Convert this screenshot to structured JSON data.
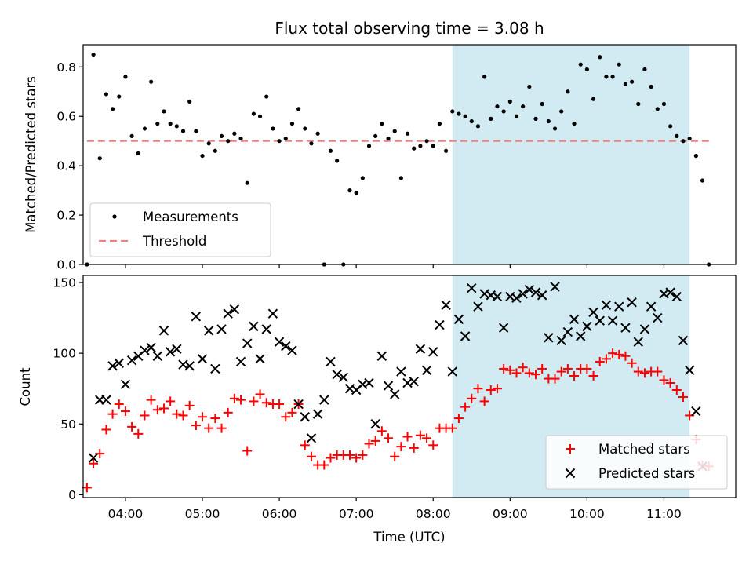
{
  "title": "Flux total observing time = 3.08 h",
  "top": {
    "ylabel": "Matched/Predicted stars",
    "ylim": [
      0,
      0.89
    ],
    "yticks": [
      0.0,
      0.2,
      0.4,
      0.6,
      0.8
    ],
    "ytick_labels": [
      "0.0",
      "0.2",
      "0.4",
      "0.6",
      "0.8"
    ],
    "threshold": 0.5,
    "legend": {
      "measurements": "Measurements",
      "threshold": "Threshold"
    }
  },
  "bottom": {
    "ylabel": "Count",
    "ylim": [
      -2,
      155
    ],
    "yticks": [
      0,
      50,
      100,
      150
    ],
    "ytick_labels": [
      "0",
      "50",
      "100",
      "150"
    ],
    "legend": {
      "matched": "Matched stars",
      "predicted": "Predicted stars"
    }
  },
  "xlabel": "Time (UTC)",
  "xlim": [
    "03:27",
    "11:56"
  ],
  "xticks": [
    "04:00",
    "05:00",
    "06:00",
    "07:00",
    "08:00",
    "09:00",
    "10:00",
    "11:00"
  ],
  "shaded_interval": [
    "08:15",
    "11:20"
  ],
  "colors": {
    "measurements": "#000000",
    "threshold": "#f08080",
    "matched": "#ff0000",
    "predicted": "#000000",
    "shade": "#add8e6"
  },
  "chart_data": {
    "type": "scatter",
    "x_unit": "time of day (UTC)",
    "ratio_series": {
      "name": "Measurements",
      "x": [
        "03:30",
        "03:35",
        "03:40",
        "03:45",
        "03:50",
        "03:55",
        "04:00",
        "04:05",
        "04:10",
        "04:15",
        "04:20",
        "04:25",
        "04:30",
        "04:35",
        "04:40",
        "04:45",
        "04:50",
        "04:55",
        "05:00",
        "05:05",
        "05:10",
        "05:15",
        "05:20",
        "05:25",
        "05:30",
        "05:35",
        "05:40",
        "05:45",
        "05:50",
        "05:55",
        "06:00",
        "06:05",
        "06:10",
        "06:15",
        "06:20",
        "06:25",
        "06:30",
        "06:35",
        "06:40",
        "06:45",
        "06:50",
        "06:55",
        "07:00",
        "07:05",
        "07:10",
        "07:15",
        "07:20",
        "07:25",
        "07:30",
        "07:35",
        "07:40",
        "07:45",
        "07:50",
        "07:55",
        "08:00",
        "08:05",
        "08:10",
        "08:15",
        "08:20",
        "08:25",
        "08:30",
        "08:35",
        "08:40",
        "08:45",
        "08:50",
        "08:55",
        "09:00",
        "09:05",
        "09:10",
        "09:15",
        "09:20",
        "09:25",
        "09:30",
        "09:35",
        "09:40",
        "09:45",
        "09:50",
        "09:55",
        "10:00",
        "10:05",
        "10:10",
        "10:15",
        "10:20",
        "10:25",
        "10:30",
        "10:35",
        "10:40",
        "10:45",
        "10:50",
        "10:55",
        "11:00",
        "11:05",
        "11:10",
        "11:15",
        "11:20",
        "11:25",
        "11:30",
        "11:35"
      ],
      "y": [
        0.0,
        0.85,
        0.43,
        0.69,
        0.63,
        0.68,
        0.76,
        0.52,
        0.45,
        0.55,
        0.74,
        0.57,
        0.62,
        0.57,
        0.56,
        0.54,
        0.66,
        0.54,
        0.44,
        0.49,
        0.46,
        0.52,
        0.5,
        0.53,
        0.51,
        0.33,
        0.61,
        0.6,
        0.68,
        0.55,
        0.5,
        0.51,
        0.57,
        0.63,
        0.55,
        0.49,
        0.53,
        0.0,
        0.46,
        0.42,
        0.0,
        0.3,
        0.29,
        0.35,
        0.48,
        0.52,
        0.57,
        0.51,
        0.54,
        0.35,
        0.53,
        0.47,
        0.48,
        0.5,
        0.48,
        0.57,
        0.46,
        0.62,
        0.61,
        0.6,
        0.58,
        0.56,
        0.76,
        0.59,
        0.64,
        0.62,
        0.66,
        0.6,
        0.64,
        0.72,
        0.59,
        0.65,
        0.58,
        0.55,
        0.62,
        0.7,
        0.57,
        0.81,
        0.79,
        0.67,
        0.84,
        0.76,
        0.76,
        0.81,
        0.73,
        0.74,
        0.65,
        0.79,
        0.72,
        0.63,
        0.65,
        0.56,
        0.52,
        0.5,
        0.51,
        0.44,
        0.34,
        0.0
      ]
    },
    "count_series": [
      {
        "name": "Matched stars",
        "x": [
          "03:30",
          "03:35",
          "03:40",
          "03:45",
          "03:50",
          "03:55",
          "04:00",
          "04:05",
          "04:10",
          "04:15",
          "04:20",
          "04:25",
          "04:30",
          "04:35",
          "04:40",
          "04:45",
          "04:50",
          "04:55",
          "05:00",
          "05:05",
          "05:10",
          "05:15",
          "05:20",
          "05:25",
          "05:30",
          "05:35",
          "05:40",
          "05:45",
          "05:50",
          "05:55",
          "06:00",
          "06:05",
          "06:10",
          "06:15",
          "06:20",
          "06:25",
          "06:30",
          "06:35",
          "06:40",
          "06:45",
          "06:50",
          "06:55",
          "07:00",
          "07:05",
          "07:10",
          "07:15",
          "07:20",
          "07:25",
          "07:30",
          "07:35",
          "07:40",
          "07:45",
          "07:50",
          "07:55",
          "08:00",
          "08:05",
          "08:10",
          "08:15",
          "08:20",
          "08:25",
          "08:30",
          "08:35",
          "08:40",
          "08:45",
          "08:50",
          "08:55",
          "09:00",
          "09:05",
          "09:10",
          "09:15",
          "09:20",
          "09:25",
          "09:30",
          "09:35",
          "09:40",
          "09:45",
          "09:50",
          "09:55",
          "10:00",
          "10:05",
          "10:10",
          "10:15",
          "10:20",
          "10:25",
          "10:30",
          "10:35",
          "10:40",
          "10:45",
          "10:50",
          "10:55",
          "11:00",
          "11:05",
          "11:10",
          "11:15",
          "11:20",
          "11:25",
          "11:30",
          "11:35"
        ],
        "y": [
          5,
          22,
          29,
          46,
          57,
          64,
          59,
          48,
          43,
          56,
          67,
          60,
          61,
          66,
          57,
          56,
          63,
          49,
          55,
          47,
          54,
          47,
          58,
          68,
          67,
          31,
          66,
          71,
          65,
          64,
          64,
          55,
          58,
          64,
          35,
          27,
          21,
          21,
          26,
          28,
          28,
          28,
          26,
          28,
          36,
          38,
          45,
          40,
          27,
          34,
          41,
          33,
          42,
          40,
          35,
          47,
          47,
          47,
          54,
          62,
          68,
          75,
          66,
          74,
          75,
          89,
          88,
          86,
          90,
          86,
          85,
          89,
          82,
          82,
          87,
          89,
          84,
          89,
          89,
          84,
          94,
          96,
          100,
          99,
          98,
          93,
          87,
          86,
          87,
          87,
          81,
          79,
          74,
          69,
          56,
          39,
          21,
          20
        ]
      },
      {
        "name": "Predicted stars",
        "x": [
          "03:35",
          "03:40",
          "03:45",
          "03:50",
          "03:55",
          "04:00",
          "04:05",
          "04:10",
          "04:15",
          "04:20",
          "04:25",
          "04:30",
          "04:35",
          "04:40",
          "04:45",
          "04:50",
          "04:55",
          "05:00",
          "05:05",
          "05:10",
          "05:15",
          "05:20",
          "05:25",
          "05:30",
          "05:35",
          "05:40",
          "05:45",
          "05:50",
          "05:55",
          "06:00",
          "06:05",
          "06:10",
          "06:15",
          "06:20",
          "06:25",
          "06:30",
          "06:35",
          "06:40",
          "06:45",
          "06:50",
          "06:55",
          "07:00",
          "07:05",
          "07:10",
          "07:15",
          "07:20",
          "07:25",
          "07:30",
          "07:35",
          "07:40",
          "07:45",
          "07:50",
          "07:55",
          "08:00",
          "08:05",
          "08:10",
          "08:15",
          "08:20",
          "08:25",
          "08:30",
          "08:35",
          "08:40",
          "08:45",
          "08:50",
          "08:55",
          "09:00",
          "09:05",
          "09:10",
          "09:15",
          "09:20",
          "09:25",
          "09:30",
          "09:35",
          "09:40",
          "09:45",
          "09:50",
          "09:55",
          "10:00",
          "10:05",
          "10:10",
          "10:15",
          "10:20",
          "10:25",
          "10:30",
          "10:35",
          "10:40",
          "10:45",
          "10:50",
          "10:55",
          "11:00",
          "11:05",
          "11:10",
          "11:15",
          "11:20",
          "11:25",
          "11:30"
        ],
        "y": [
          26,
          67,
          67,
          91,
          93,
          78,
          95,
          98,
          102,
          104,
          98,
          116,
          101,
          103,
          92,
          91,
          126,
          96,
          116,
          89,
          117,
          128,
          131,
          94,
          107,
          119,
          96,
          117,
          128,
          108,
          105,
          102,
          64,
          55,
          40,
          57,
          67,
          94,
          85,
          83,
          75,
          74,
          78,
          79,
          50,
          98,
          77,
          71,
          87,
          79,
          80,
          103,
          88,
          101,
          120,
          134,
          87,
          124,
          112,
          146,
          133,
          142,
          141,
          140,
          118,
          140,
          139,
          142,
          145,
          143,
          141,
          111,
          147,
          109,
          115,
          124,
          112,
          119,
          129,
          123,
          134,
          123,
          133,
          118,
          136,
          108,
          117,
          133,
          125,
          142,
          143,
          140,
          109,
          88,
          59,
          20
        ]
      }
    ]
  }
}
